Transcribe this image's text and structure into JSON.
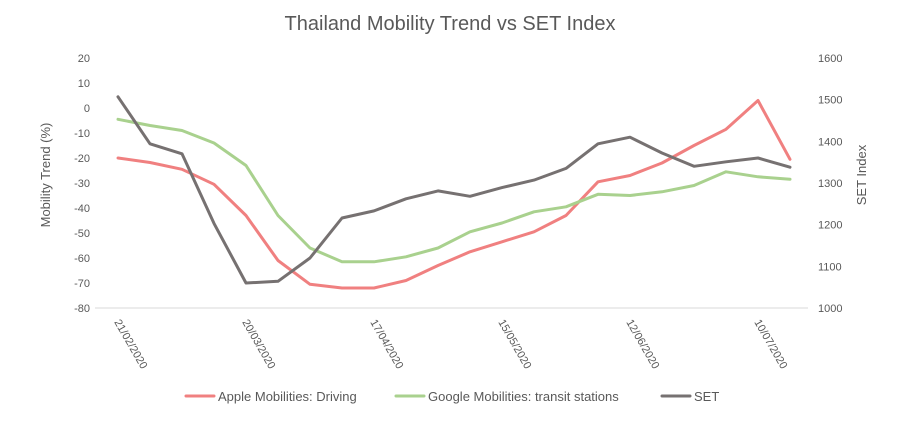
{
  "chart_data": {
    "type": "line",
    "title": "Thailand Mobility Trend vs SET Index",
    "ylabel": "Mobility Trend (%)",
    "y2label": "SET Index",
    "ylim": [
      -80,
      20
    ],
    "y2lim": [
      1000,
      1600
    ],
    "yticks": [
      "20",
      "10",
      "0",
      "-10",
      "-20",
      "-30",
      "-40",
      "-50",
      "-60",
      "-70",
      "-80"
    ],
    "y2ticks": [
      "1600",
      "1500",
      "1400",
      "1300",
      "1200",
      "1100",
      "1000"
    ],
    "xtick_labels": [
      "21/02/2020",
      "20/03/2020",
      "17/04/2020",
      "15/05/2020",
      "12/06/2020",
      "10/07/2020"
    ],
    "xtick_positions": [
      0,
      4,
      8,
      12,
      16,
      20
    ],
    "x_count": 22,
    "grid": false,
    "legend_position": "bottom",
    "series": [
      {
        "name": "Apple Mobilities: Driving",
        "axis": "left",
        "color": "#f08080",
        "values": [
          -20,
          -21.8,
          -24.5,
          -30.5,
          -43,
          -61,
          -70.5,
          -72,
          -72,
          -69,
          -63,
          -57.5,
          -53.5,
          -49.5,
          -43,
          -29.5,
          -27,
          -22,
          -15,
          -8.5,
          3,
          -20.5
        ]
      },
      {
        "name": "Google Mobilities: transit stations",
        "axis": "left",
        "color": "#a9d18e",
        "values": [
          -4.5,
          -7,
          -9,
          -14,
          -23,
          -43,
          -56,
          -61.5,
          -61.5,
          -59.5,
          -56,
          -49.5,
          -46,
          -41.5,
          -39.5,
          -34.5,
          -35,
          -33.5,
          -31,
          -25.5,
          -27.5,
          -28.5
        ]
      },
      {
        "name": "SET",
        "axis": "right",
        "color": "#767171",
        "values": [
          1507,
          1394,
          1370,
          1203,
          1060,
          1064,
          1120,
          1216,
          1233,
          1262,
          1281,
          1268,
          1289,
          1307,
          1335,
          1394,
          1410,
          1372,
          1340,
          1351,
          1360,
          1338
        ]
      }
    ]
  }
}
